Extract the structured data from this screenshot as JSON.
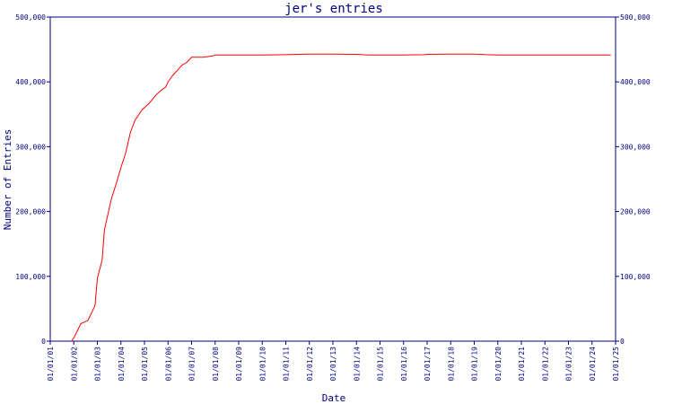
{
  "chart_data": {
    "type": "line",
    "title": "jer's entries",
    "xlabel": "Date",
    "ylabel": "Number of Entries",
    "ylim": [
      0,
      500000
    ],
    "y_ticks": [
      "0",
      "100,000",
      "200,000",
      "300,000",
      "400,000",
      "500,000"
    ],
    "y_tick_values": [
      0,
      100000,
      200000,
      300000,
      400000,
      500000
    ],
    "x_ticks": [
      "01/01/01",
      "01/01/02",
      "01/01/03",
      "01/01/04",
      "01/01/05",
      "01/01/06",
      "01/01/07",
      "01/01/08",
      "01/01/09",
      "01/01/10",
      "01/01/11",
      "01/01/12",
      "01/01/13",
      "01/01/14",
      "01/01/15",
      "01/01/16",
      "01/01/17",
      "01/01/18",
      "01/01/19",
      "01/01/20",
      "01/01/21",
      "01/01/22",
      "01/01/23",
      "01/01/24",
      "01/01/25"
    ],
    "xlim": [
      2001,
      2025
    ],
    "grid": false,
    "colors": {
      "line": "#ff0000",
      "axis": "#000080",
      "text": "#000080"
    },
    "series": [
      {
        "x": [
          2001.9,
          2002.0,
          2002.3,
          2002.6,
          2002.9,
          2003.0,
          2003.2,
          2003.3,
          2003.4,
          2003.6,
          2003.8,
          2004.0,
          2004.2,
          2004.4,
          2004.6,
          2004.9,
          2005.2,
          2005.5,
          2005.7,
          2005.9,
          2006.0,
          2006.2,
          2006.4,
          2006.6,
          2006.8,
          2007.0,
          2007.5,
          2007.9,
          2008.0,
          2009,
          2010,
          2011,
          2011.5,
          2012,
          2013,
          2014,
          2014.5,
          2015,
          2016,
          2016.9,
          2017,
          2018,
          2019,
          2019.5,
          2020,
          2021,
          2022,
          2023,
          2024,
          2024.8
        ],
        "y": [
          0,
          5000,
          27000,
          32000,
          55000,
          97000,
          125000,
          172000,
          188000,
          220000,
          243000,
          268000,
          290000,
          322000,
          341000,
          357000,
          367000,
          380000,
          387000,
          392000,
          400000,
          410000,
          418000,
          426000,
          430000,
          438000,
          438000,
          440000,
          441500,
          441500,
          441500,
          442000,
          442500,
          443000,
          443000,
          442500,
          441500,
          441500,
          441500,
          442000,
          442500,
          443000,
          443000,
          442000,
          441500,
          441500,
          441500,
          441500,
          441500,
          441500
        ]
      }
    ]
  }
}
